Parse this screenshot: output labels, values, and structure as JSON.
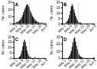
{
  "chart_data": [
    {
      "type": "bar",
      "title": "A",
      "ylabel": "No. cases",
      "categories": [
        "May 1",
        null,
        null,
        null,
        null,
        null,
        null,
        "May 8",
        null,
        null,
        null,
        null,
        null,
        null,
        "May 15",
        null,
        null,
        null,
        null,
        null,
        null,
        "May 22",
        null,
        null,
        null,
        null,
        null,
        null,
        "May 29",
        null,
        null,
        null,
        null,
        null,
        null,
        "Jun 5",
        null
      ],
      "values": [
        1,
        1,
        1,
        2,
        2,
        3,
        4,
        5,
        7,
        9,
        12,
        16,
        19,
        22,
        25,
        27,
        26,
        23,
        20,
        17,
        14,
        11,
        9,
        7,
        5,
        4,
        3,
        2,
        2,
        1,
        1,
        1,
        1,
        1,
        0,
        0,
        1
      ],
      "color": "#111111",
      "ylim": [
        0,
        30
      ],
      "yticks": [
        0,
        10,
        20,
        30
      ],
      "vline": {
        "x": 18,
        "color": "#cccccc"
      }
    },
    {
      "type": "bar",
      "title": "B",
      "ylabel": "No. cases",
      "categories": [
        "May 1",
        null,
        null,
        null,
        null,
        null,
        null,
        "May 8",
        null,
        null,
        null,
        null,
        null,
        null,
        "May 15",
        null,
        null,
        null,
        null,
        null,
        null,
        "May 22",
        null,
        null,
        null,
        null,
        null,
        null,
        "May 29",
        null,
        null,
        null,
        null,
        null,
        null,
        "Jun 5",
        null
      ],
      "values": [
        0,
        0,
        0,
        0,
        1,
        2,
        3,
        5,
        8,
        12,
        16,
        18,
        16,
        13,
        10,
        7,
        5,
        3,
        2,
        1,
        1,
        1,
        0,
        0,
        0,
        0,
        0,
        0,
        0,
        0,
        0,
        0,
        0,
        0,
        0,
        0,
        0
      ],
      "color": "#111111",
      "ylim": [
        0,
        20
      ],
      "yticks": [
        0,
        5,
        10,
        15,
        20
      ],
      "vline": {
        "x": 18,
        "color": "#cccccc"
      }
    },
    {
      "type": "bar",
      "title": "C",
      "ylabel": "No. cases",
      "categories": [
        "May 1",
        null,
        null,
        null,
        null,
        null,
        null,
        "May 8",
        null,
        null,
        null,
        null,
        null,
        null,
        "May 15",
        null,
        null,
        null,
        null,
        null,
        null,
        "May 22",
        null,
        null,
        null,
        null,
        null,
        null,
        "May 29",
        null,
        null,
        null,
        null,
        null,
        null,
        "Jun 5",
        null
      ],
      "values": [
        0,
        0,
        0,
        0,
        0,
        0,
        1,
        2,
        4,
        7,
        11,
        15,
        17,
        15,
        11,
        7,
        4,
        2,
        1,
        1,
        0,
        0,
        0,
        0,
        1,
        0,
        0,
        0,
        0,
        0,
        0,
        0,
        0,
        0,
        0,
        0,
        0
      ],
      "color": "#111111",
      "ylim": [
        0,
        20
      ],
      "yticks": [
        0,
        5,
        10,
        15,
        20
      ],
      "vline": {
        "x": 18,
        "color": "#cccccc"
      }
    },
    {
      "type": "bar",
      "title": "D",
      "ylabel": "No. cases",
      "categories": [
        "May 1",
        null,
        null,
        null,
        null,
        null,
        null,
        "May 8",
        null,
        null,
        null,
        null,
        null,
        null,
        "May 15",
        null,
        null,
        null,
        null,
        null,
        null,
        "May 22",
        null,
        null,
        null,
        null,
        null,
        null,
        "May 29",
        null,
        null,
        null,
        null,
        null,
        null,
        "Jun 5",
        null
      ],
      "values": [
        0,
        0,
        0,
        0,
        0,
        0,
        0,
        1,
        3,
        6,
        10,
        16,
        22,
        27,
        29,
        23,
        17,
        12,
        8,
        5,
        3,
        2,
        1,
        1,
        0,
        0,
        0,
        0,
        0,
        0,
        0,
        0,
        0,
        0,
        0,
        0,
        1
      ],
      "color": "#111111",
      "ylim": [
        0,
        30
      ],
      "yticks": [
        0,
        10,
        20,
        30
      ],
      "vline": {
        "x": 18,
        "color": "#cccccc"
      }
    }
  ]
}
